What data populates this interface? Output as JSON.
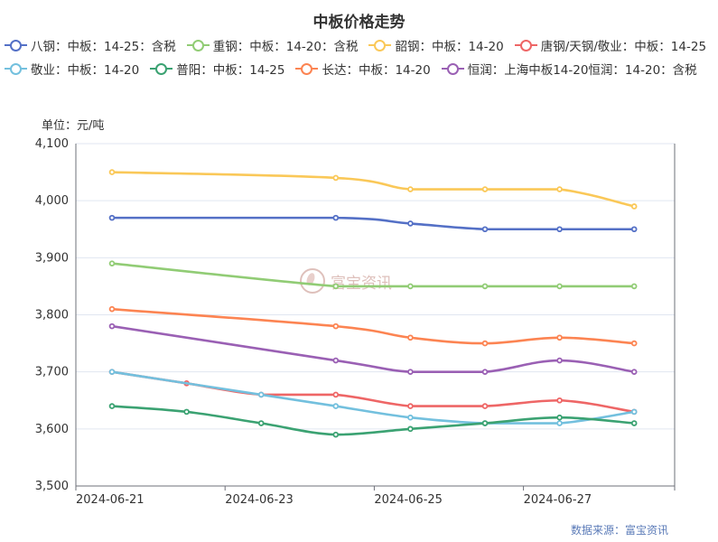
{
  "chart_data": {
    "type": "line",
    "title": "中板价格走势",
    "ylabel": "单位：元/吨",
    "ylim": [
      3500,
      4100
    ],
    "y_ticks": [
      "3,500",
      "3,600",
      "3,700",
      "3,800",
      "3,900",
      "4,000",
      "4,100"
    ],
    "x_ticks": [
      "2024-06-21",
      "2024-06-23",
      "2024-06-25",
      "2024-06-27"
    ],
    "x": [
      "2024-06-21",
      "2024-06-22",
      "2024-06-23",
      "2024-06-24",
      "2024-06-25",
      "2024-06-26",
      "2024-06-27",
      "2024-06-28"
    ],
    "legend_position": "top",
    "grid": true,
    "smooth": true,
    "series": [
      {
        "name": "八钢：中板：14-25：含税",
        "color": "#5470c6",
        "values": [
          3970,
          null,
          null,
          3970,
          3960,
          3950,
          3950,
          3950
        ]
      },
      {
        "name": "重钢：中板：14-20：含税",
        "color": "#91cc75",
        "values": [
          3890,
          null,
          null,
          3850,
          3850,
          3850,
          3850,
          3850
        ]
      },
      {
        "name": "韶钢：中板：14-20",
        "color": "#fac858",
        "values": [
          4050,
          null,
          null,
          4040,
          4020,
          4020,
          4020,
          3990
        ]
      },
      {
        "name": "唐钢/天钢/敬业：中板：14-25",
        "color": "#ee6666",
        "values": [
          3700,
          3680,
          3660,
          3660,
          3640,
          3640,
          3650,
          3630
        ]
      },
      {
        "name": "敬业：中板：14-20",
        "color": "#73c0de",
        "values": [
          3700,
          null,
          3660,
          3640,
          3620,
          3610,
          3610,
          3630
        ]
      },
      {
        "name": "普阳：中板：14-25",
        "color": "#3ba272",
        "values": [
          3640,
          3630,
          3610,
          3590,
          3600,
          3610,
          3620,
          3610
        ]
      },
      {
        "name": "长达：中板：14-20",
        "color": "#fc8452",
        "values": [
          3810,
          null,
          null,
          3780,
          3760,
          3750,
          3760,
          3750
        ]
      },
      {
        "name": "恒润：上海中板14-20恒润：14-20：含税",
        "color": "#9a60b4",
        "values": [
          3780,
          null,
          null,
          3720,
          3700,
          3700,
          3720,
          3700
        ]
      }
    ]
  },
  "watermark": {
    "text": "富宝资讯"
  },
  "source": "数据来源：富宝资讯"
}
